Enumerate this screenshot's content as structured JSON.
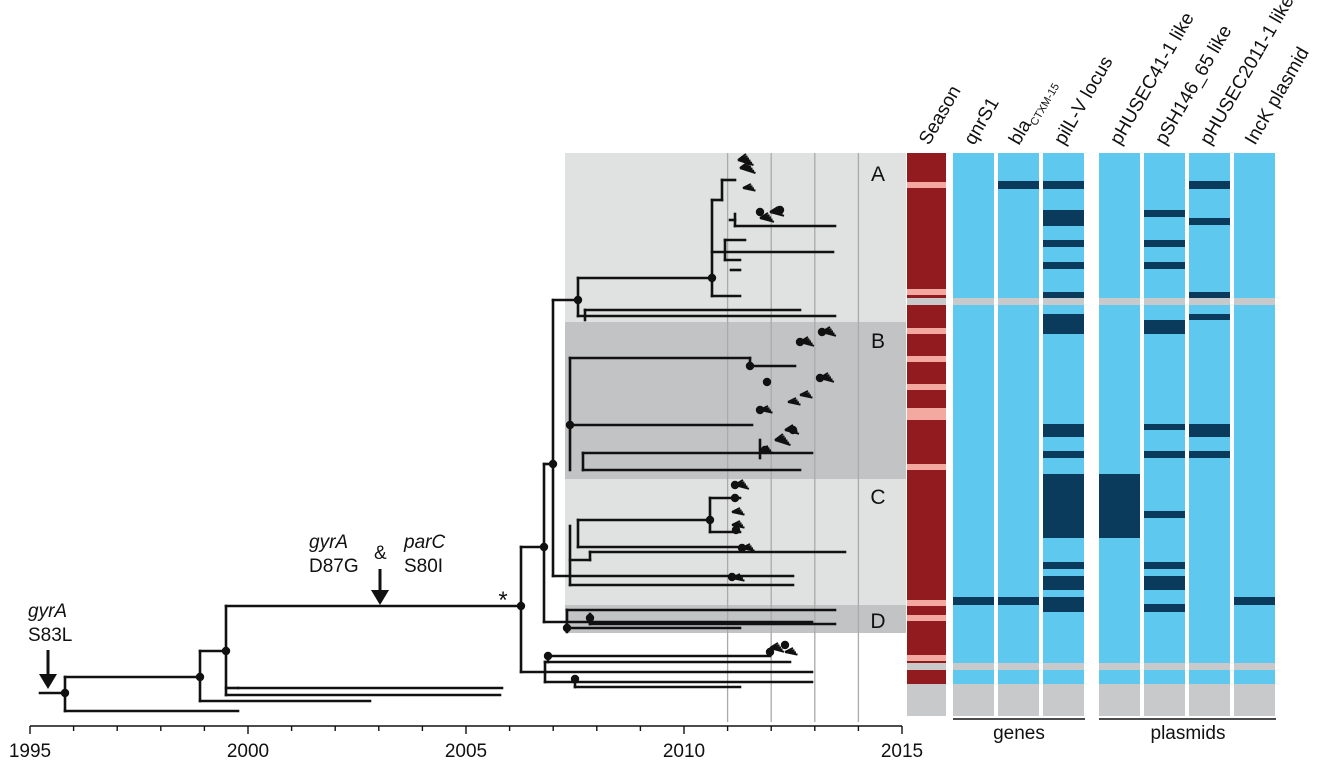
{
  "axis": {
    "ticks": [
      {
        "year": 1995,
        "label": "1995"
      },
      {
        "year": 2000,
        "label": "2000"
      },
      {
        "year": 2005,
        "label": "2005"
      },
      {
        "year": 2010,
        "label": "2010"
      },
      {
        "year": 2015,
        "label": "2015"
      }
    ],
    "range": [
      1995,
      2015
    ]
  },
  "clades": [
    {
      "label": "A"
    },
    {
      "label": "B"
    },
    {
      "label": "C"
    },
    {
      "label": "D"
    }
  ],
  "annotations": {
    "gyrA_s83l": {
      "gene": "gyrA",
      "mutation": "S83L"
    },
    "gyrA_d87g": {
      "gene": "gyrA",
      "mutation": "D87G"
    },
    "ampersand": "&",
    "parC_s80i": {
      "gene": "parC",
      "mutation": "S80I"
    },
    "star": "*"
  },
  "columns": {
    "season": "Season",
    "genes": [
      {
        "label": "qnrS1"
      },
      {
        "label_main": "bla",
        "label_sub": "CTXM-15"
      },
      {
        "label": "pilL-V locus"
      }
    ],
    "plasmids": [
      {
        "label": "pHUSEC41-1 like"
      },
      {
        "label": "pSH146_65 like"
      },
      {
        "label": "pHUSEC2011-1 like"
      },
      {
        "label": "IncK plasmid"
      }
    ]
  },
  "group_labels": {
    "genes": "genes",
    "plasmids": "plasmids"
  },
  "colors": {
    "season_dark": "#921b1f",
    "season_light": "#f3a9a0",
    "absent": "#5ec8ef",
    "present": "#0a3a5c",
    "missing": "#c8c9cb",
    "clade_light": "#e0e1e1",
    "clade_dark": "#c2c3c5",
    "branch": "#111111"
  }
}
